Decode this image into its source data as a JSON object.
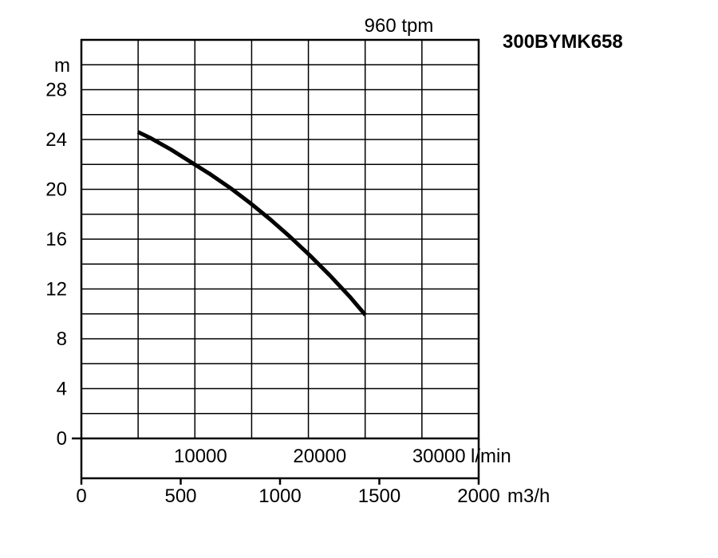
{
  "chart_data": {
    "type": "line",
    "title": "300BYMK658",
    "speed_label": "960 tpm",
    "ylabel": "m",
    "ylim": [
      0,
      32
    ],
    "y_ticks": [
      "0",
      "4",
      "8",
      "12",
      "16",
      "20",
      "24",
      "28"
    ],
    "x_lpm": {
      "unit": "l/min",
      "ticks": [
        "10000",
        "20000",
        "30000"
      ],
      "tick_values": [
        10000,
        20000,
        30000
      ]
    },
    "x_m3h": {
      "unit": "m3/h",
      "lim": [
        0,
        2000
      ],
      "ticks": [
        "0",
        "500",
        "1000",
        "1500",
        "2000"
      ],
      "tick_values": [
        0,
        500,
        1000,
        1500,
        2000
      ]
    },
    "grid": true,
    "series": [
      {
        "x_m3h": [
          285,
          350,
          450,
          550,
          650,
          750,
          850,
          950,
          1050,
          1150,
          1250,
          1350,
          1430
        ],
        "y_m": [
          24.6,
          24.1,
          23.2,
          22.2,
          21.2,
          20.1,
          18.9,
          17.6,
          16.2,
          14.7,
          13.1,
          11.4,
          9.9
        ]
      }
    ]
  }
}
